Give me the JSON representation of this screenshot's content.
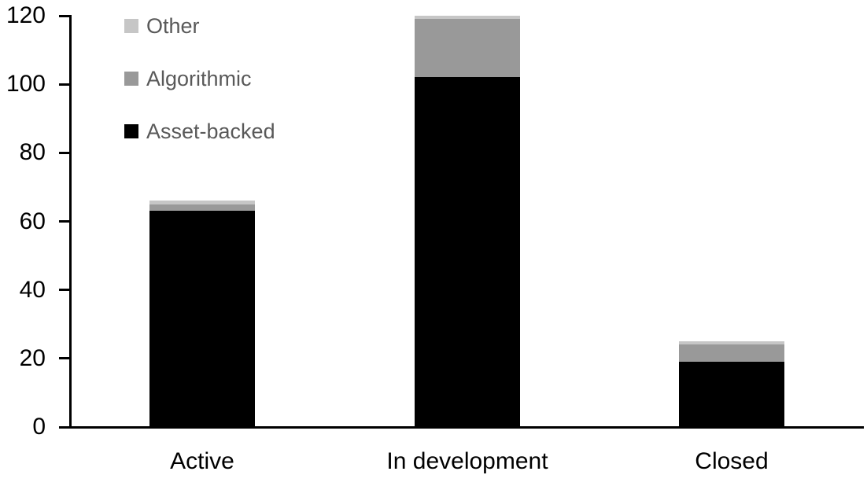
{
  "chart_data": {
    "type": "bar",
    "stacked": true,
    "title": "",
    "xlabel": "",
    "ylabel": "",
    "categories": [
      "Active",
      "In development",
      "Closed"
    ],
    "series": [
      {
        "name": "Asset-backed",
        "color": "#000000",
        "values": [
          63,
          102,
          19
        ]
      },
      {
        "name": "Algorithmic",
        "color": "#999999",
        "values": [
          2,
          17,
          5
        ]
      },
      {
        "name": "Other",
        "color": "#c6c6c6",
        "values": [
          1,
          1,
          1
        ]
      }
    ],
    "totals": [
      66,
      120,
      25
    ],
    "ylim": [
      0,
      120
    ],
    "yticks": [
      0,
      20,
      40,
      60,
      80,
      100,
      120
    ],
    "grid": false,
    "legend": {
      "position": "top-left",
      "order_top_to_bottom": [
        "Other",
        "Algorithmic",
        "Asset-backed"
      ]
    }
  },
  "colors": {
    "background": "#ffffff",
    "axis": "#000000",
    "tick_label": "#000000",
    "category_label": "#000000",
    "legend_text": "#595959"
  }
}
